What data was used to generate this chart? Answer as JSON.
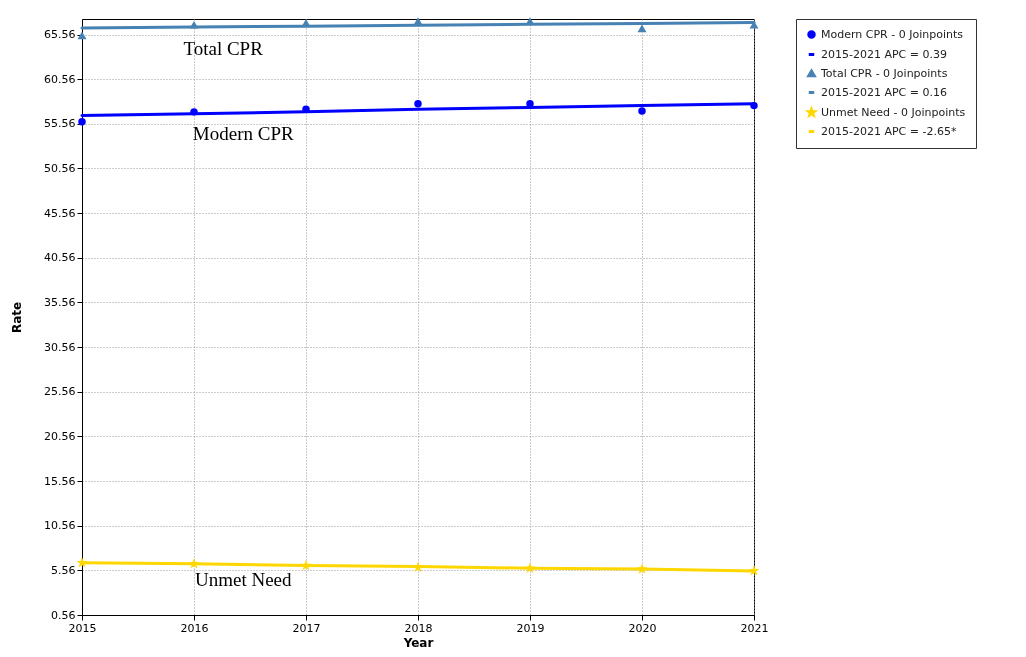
{
  "chart_data": {
    "type": "scatter",
    "xlabel": "Year",
    "ylabel": "Rate",
    "x": [
      2015,
      2016,
      2017,
      2018,
      2019,
      2020,
      2021
    ],
    "series": [
      {
        "name": "Modern CPR - 0 Joinpoints",
        "marker": "circle",
        "color": "#0000ff",
        "values": [
          55.8,
          56.9,
          57.2,
          57.8,
          57.8,
          57.0,
          57.6
        ]
      },
      {
        "name": "2015-2021 APC  = 0.39",
        "type": "line",
        "color": "#0000ff",
        "values": [
          56.5,
          56.7,
          56.9,
          57.2,
          57.4,
          57.6,
          57.8
        ]
      },
      {
        "name": "Total CPR - 0 Joinpoints",
        "marker": "triangle",
        "color": "#4682b4",
        "values": [
          65.4,
          66.6,
          66.8,
          67.0,
          67.0,
          66.2,
          66.6
        ]
      },
      {
        "name": "2015-2021 APC  = 0.16",
        "type": "line",
        "color": "#4682b4",
        "values": [
          66.3,
          66.4,
          66.5,
          66.6,
          66.7,
          66.8,
          66.9
        ]
      },
      {
        "name": "Unmet Need - 0 Joinpoints",
        "marker": "star",
        "color": "#ffd700",
        "values": [
          6.4,
          6.3,
          6.1,
          5.9,
          5.8,
          5.7,
          5.5
        ]
      },
      {
        "name": "2015-2021 APC  = -2.65*",
        "type": "line",
        "color": "#ffd700",
        "values": [
          6.4,
          6.3,
          6.1,
          6.0,
          5.8,
          5.7,
          5.5
        ]
      }
    ],
    "xlim": [
      2015,
      2021
    ],
    "xticks": [
      2015,
      2016,
      2017,
      2018,
      2019,
      2020,
      2021
    ],
    "ylim": [
      0.56,
      67.3
    ],
    "yticks": [
      0.56,
      5.56,
      10.56,
      15.56,
      20.56,
      25.56,
      30.56,
      35.56,
      40.56,
      45.56,
      50.56,
      55.56,
      60.56,
      65.56
    ],
    "grid": true,
    "legend": "top right",
    "annotations": [
      "Total CPR",
      "Modern CPR",
      "Unmet Need"
    ]
  }
}
